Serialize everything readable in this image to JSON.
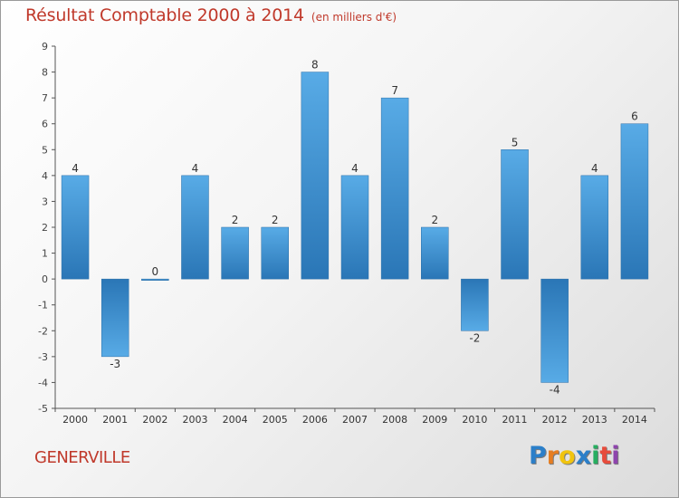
{
  "chart_data": {
    "type": "bar",
    "title": "Résultat Comptable 2000 à 2014",
    "subtitle": "(en milliers d'€)",
    "categories": [
      "2000",
      "2001",
      "2002",
      "2003",
      "2004",
      "2005",
      "2006",
      "2007",
      "2008",
      "2009",
      "2010",
      "2011",
      "2012",
      "2013",
      "2014"
    ],
    "values": [
      4,
      -3,
      0,
      4,
      2,
      2,
      8,
      4,
      7,
      2,
      -2,
      5,
      -4,
      4,
      6
    ],
    "value_labels": [
      "4",
      "-3",
      "0",
      "4",
      "2",
      "2",
      "8",
      "4",
      "7",
      "2",
      "-2",
      "5",
      "-4",
      "4",
      "6"
    ],
    "ylim": [
      -5,
      9
    ],
    "yticks": [
      -5,
      -4,
      -3,
      -2,
      -1,
      0,
      1,
      2,
      3,
      4,
      5,
      6,
      7,
      8,
      9
    ],
    "xlabel": "",
    "ylabel": "",
    "grid": false,
    "bar_color": "#3d92d2"
  },
  "footer": {
    "town": "GENERVILLE",
    "brand_letters": [
      "P",
      "r",
      "o",
      "x",
      "i",
      "t",
      "i"
    ],
    "brand_colors": [
      "#2b7fc9",
      "#e67e22",
      "#f1c40f",
      "#2b7fc9",
      "#27ae60",
      "#e74c3c",
      "#8e44ad"
    ]
  }
}
